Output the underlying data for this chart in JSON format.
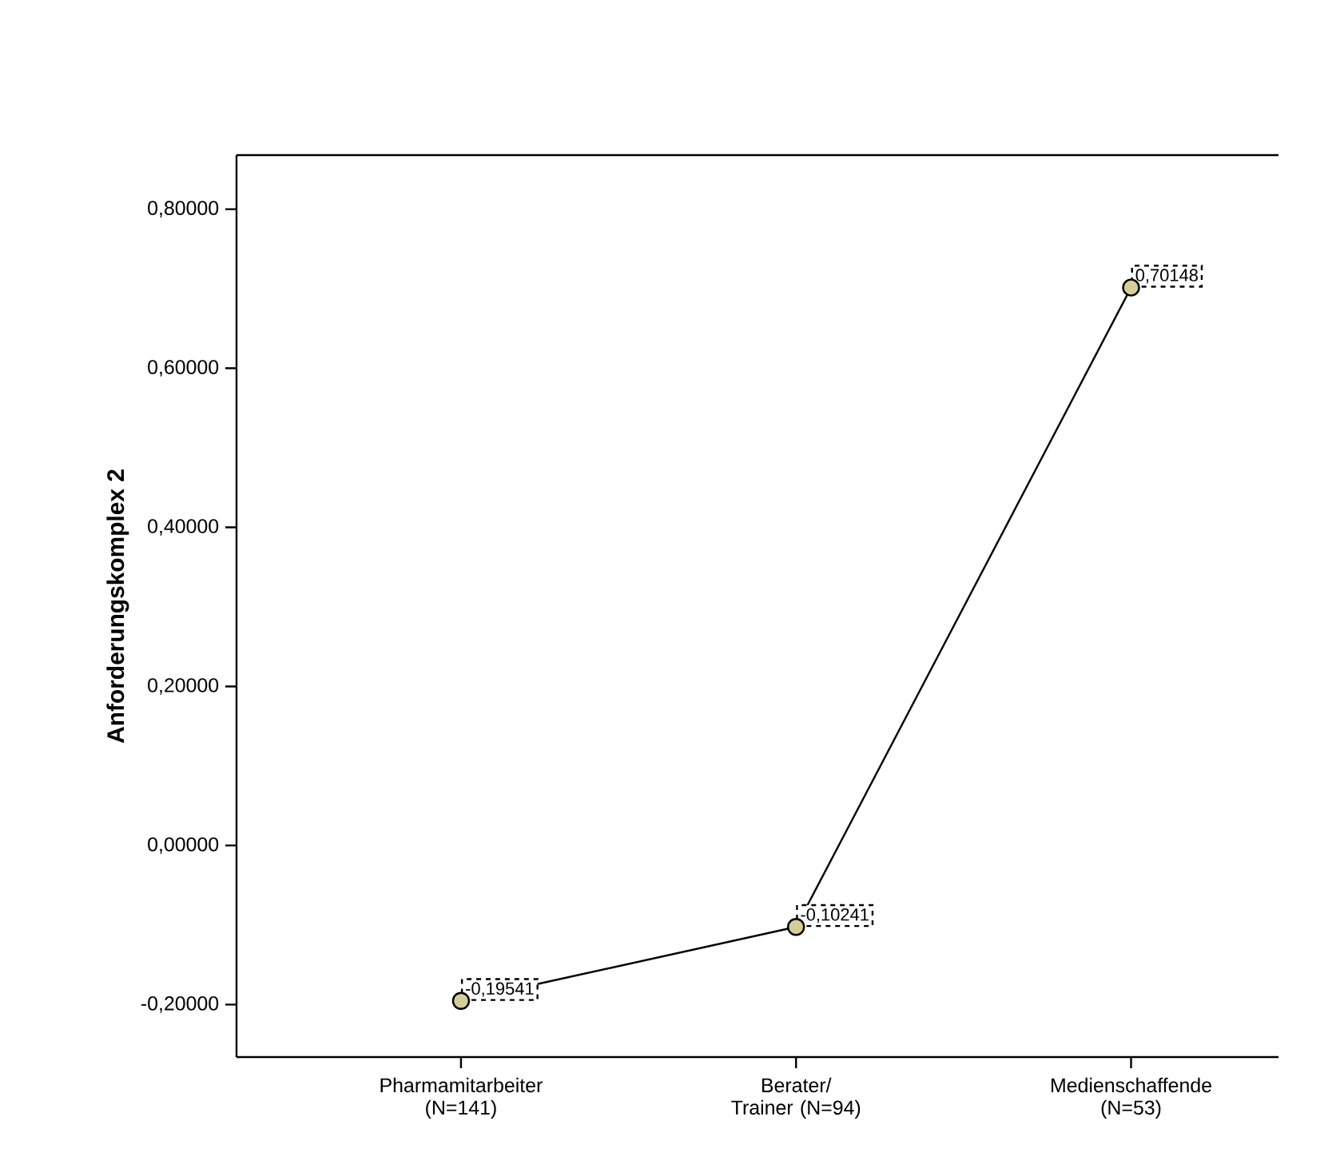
{
  "chart_data": {
    "type": "line",
    "ylabel": "Anforderungskomplex 2",
    "categories": [
      "Pharmamitarbeiter (N=141)",
      "Berater/ Trainer (N=94)",
      "Medienschaffende (N=53)"
    ],
    "series": [
      {
        "color": "#000000",
        "values": [
          -0.19541,
          -0.10241,
          0.70148
        ],
        "value_labels": [
          "-0,19541",
          "-0,10241",
          "0,70148"
        ]
      }
    ],
    "marker": "circle",
    "line_style": "solid",
    "grid": false,
    "ylim": [
      -0.266,
      0.868
    ],
    "yticks": [
      {
        "value": -0.2,
        "label": "-0,20000"
      },
      {
        "value": 0.0,
        "label": "0,00000"
      },
      {
        "value": 0.2,
        "label": "0,20000"
      },
      {
        "value": 0.4,
        "label": "0,40000"
      },
      {
        "value": 0.6,
        "label": "0,60000"
      },
      {
        "value": 0.8,
        "label": "0,80000"
      }
    ]
  }
}
